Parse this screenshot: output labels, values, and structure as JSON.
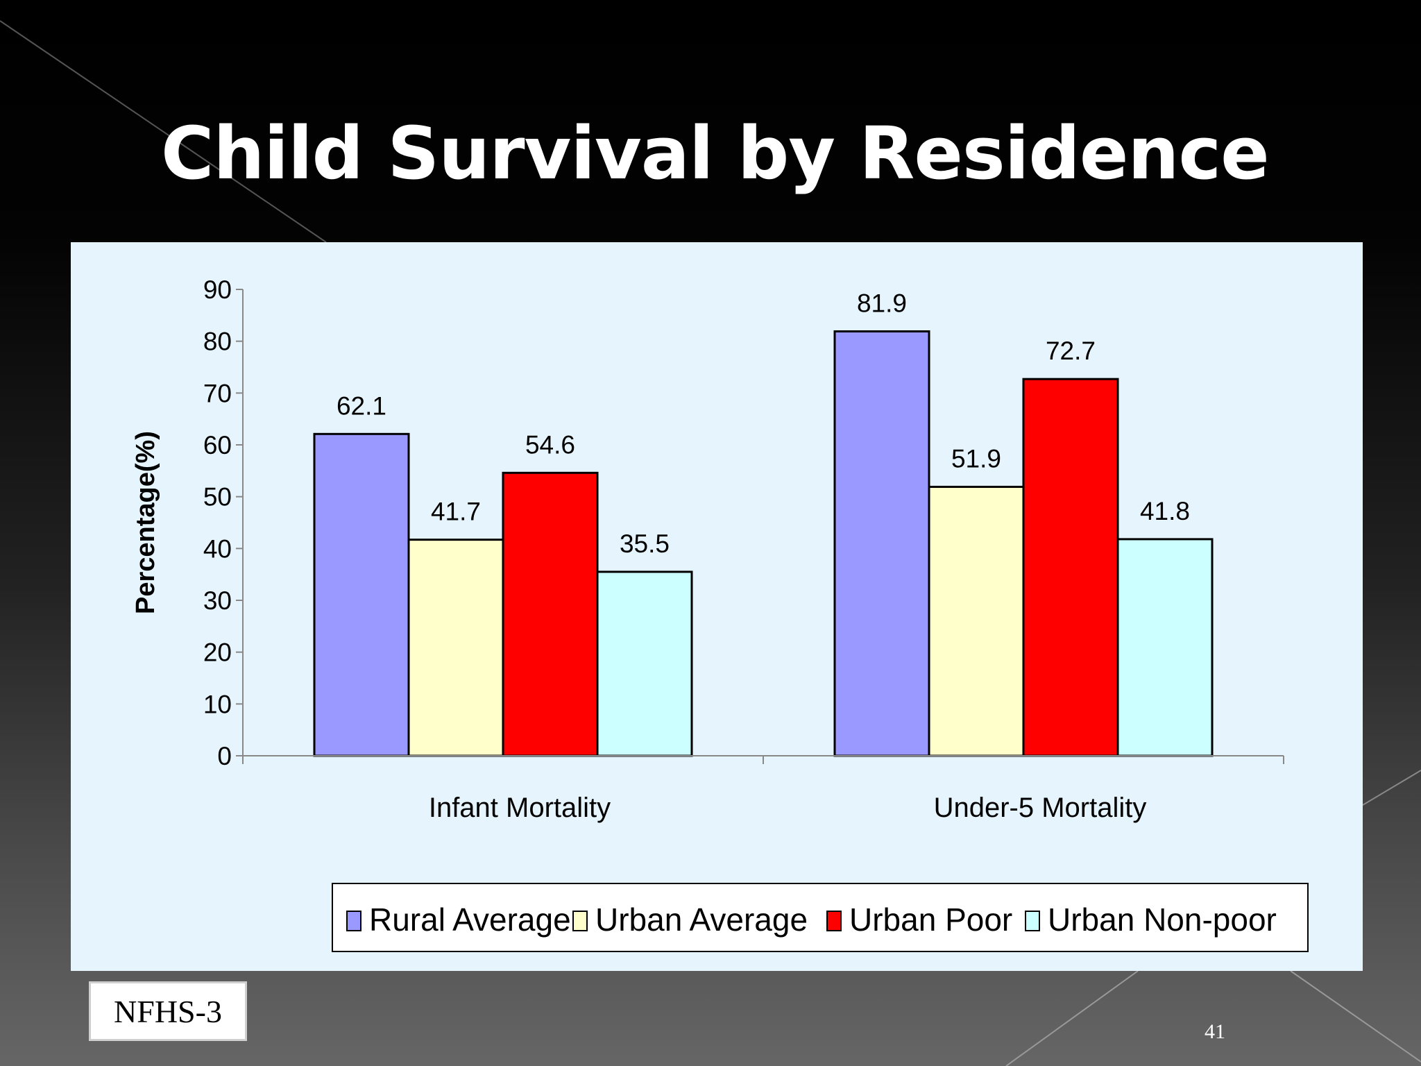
{
  "slide": {
    "title": "Child Survival by Residence",
    "source": "NFHS-3",
    "page_number": "41"
  },
  "colors": {
    "background": "#000000",
    "chart_bg": "#e6f4fd"
  },
  "chart_data": {
    "type": "bar",
    "title": "",
    "xlabel": "",
    "ylabel": "Percentage(%)",
    "ylim": [
      0,
      90
    ],
    "yticks": [
      0,
      10,
      20,
      30,
      40,
      50,
      60,
      70,
      80,
      90
    ],
    "categories": [
      "Infant Mortality",
      "Under-5 Mortality"
    ],
    "series": [
      {
        "name": "Rural Average",
        "color": "#9999ff",
        "values": [
          62.1,
          81.9
        ]
      },
      {
        "name": "Urban Average",
        "color": "#ffffcc",
        "values": [
          41.7,
          51.9
        ]
      },
      {
        "name": "Urban Poor",
        "color": "#ff0000",
        "values": [
          54.6,
          72.7
        ]
      },
      {
        "name": "Urban Non-poor",
        "color": "#ccffff",
        "values": [
          35.5,
          41.8
        ]
      }
    ],
    "legend": "bottom",
    "grid": false
  }
}
